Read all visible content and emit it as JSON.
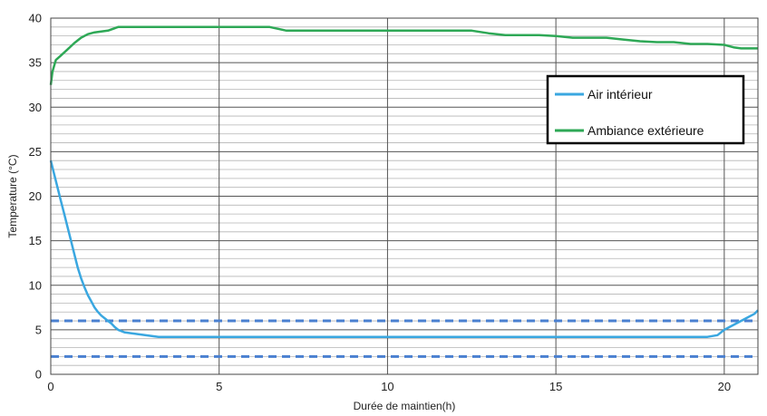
{
  "chart_data": {
    "type": "line",
    "xlabel": "Durée de maintien(h)",
    "ylabel": "Temperature  (°C)",
    "xlim": [
      0,
      21
    ],
    "ylim": [
      0,
      40
    ],
    "x_ticks": [
      0,
      5,
      10,
      15,
      20
    ],
    "x_tick_labels": [
      "0",
      "5",
      "10",
      "15",
      "20"
    ],
    "y_ticks": [
      0,
      5,
      10,
      15,
      20,
      25,
      30,
      35,
      40
    ],
    "y_tick_labels": [
      "0",
      "5",
      "10",
      "15",
      "20",
      "25",
      "30",
      "35",
      "40"
    ],
    "grid": "on",
    "legend_position": "top-right",
    "series": [
      {
        "name": "Air intérieur",
        "color": "#3aa7e0",
        "x": [
          0,
          0.1,
          0.2,
          0.3,
          0.4,
          0.5,
          0.6,
          0.7,
          0.8,
          0.9,
          1.0,
          1.1,
          1.2,
          1.3,
          1.4,
          1.5,
          1.6,
          1.7,
          1.8,
          1.9,
          2.0,
          2.2,
          2.4,
          2.6,
          2.8,
          3.0,
          3.2,
          4,
          5,
          6,
          7,
          8,
          9,
          10,
          11,
          12,
          13,
          14,
          15,
          16,
          17,
          18,
          19,
          19.5,
          19.8,
          20.0,
          20.3,
          20.6,
          20.9,
          21.0
        ],
        "values": [
          24,
          22.5,
          21,
          19.5,
          18,
          16.5,
          15,
          13.5,
          12,
          10.8,
          9.8,
          8.9,
          8.2,
          7.5,
          7.0,
          6.6,
          6.3,
          6.0,
          5.7,
          5.3,
          5.0,
          4.7,
          4.6,
          4.5,
          4.4,
          4.3,
          4.2,
          4.2,
          4.2,
          4.2,
          4.2,
          4.2,
          4.2,
          4.2,
          4.2,
          4.2,
          4.2,
          4.2,
          4.2,
          4.2,
          4.2,
          4.2,
          4.2,
          4.2,
          4.4,
          5.0,
          5.6,
          6.2,
          6.8,
          7.2
        ]
      },
      {
        "name": "Ambiance extérieure",
        "color": "#2ea856",
        "x": [
          0,
          0.05,
          0.15,
          0.3,
          0.5,
          0.7,
          0.9,
          1.1,
          1.3,
          1.5,
          1.7,
          2.0,
          2.5,
          3.0,
          3.5,
          4.0,
          4.5,
          5.0,
          5.5,
          6.0,
          6.5,
          7.0,
          7.5,
          8.0,
          8.5,
          9.0,
          9.5,
          10.0,
          10.5,
          11.0,
          11.5,
          12.0,
          12.5,
          13.0,
          13.5,
          14.0,
          14.5,
          15.0,
          15.5,
          16.0,
          16.5,
          17.0,
          17.5,
          18.0,
          18.5,
          19.0,
          19.5,
          20.0,
          20.3,
          20.5,
          21.0
        ],
        "values": [
          32.5,
          34,
          35.3,
          35.8,
          36.5,
          37.2,
          37.8,
          38.2,
          38.4,
          38.5,
          38.6,
          39.0,
          39.0,
          39.0,
          39.0,
          39.0,
          39.0,
          39.0,
          39.0,
          39.0,
          39.0,
          38.6,
          38.6,
          38.6,
          38.6,
          38.6,
          38.6,
          38.6,
          38.6,
          38.6,
          38.6,
          38.6,
          38.6,
          38.3,
          38.1,
          38.1,
          38.1,
          38.0,
          37.8,
          37.8,
          37.8,
          37.6,
          37.4,
          37.3,
          37.3,
          37.1,
          37.1,
          37.0,
          36.7,
          36.6,
          36.6
        ]
      }
    ],
    "reference_lines": [
      {
        "y": 6,
        "color": "#4a80d0",
        "style": "dashed"
      },
      {
        "y": 2,
        "color": "#4a80d0",
        "style": "dashed"
      }
    ]
  }
}
